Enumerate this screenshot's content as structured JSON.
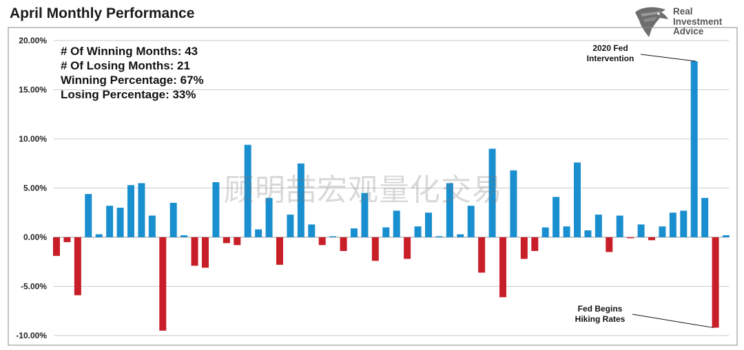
{
  "title": "April Monthly Performance",
  "logo": {
    "line1": "Real",
    "line2": "Investment",
    "line3": "Advice",
    "icon": "eagle-head-icon"
  },
  "stats": {
    "winning_months": "# Of Winning Months: 43",
    "losing_months": "# Of Losing Months: 21",
    "winning_pct": "Winning Percentage: 67%",
    "losing_pct": "Losing Percentage: 33%"
  },
  "watermark": "顾明喆宏观量化交易",
  "colors": {
    "positive": "#1a8fcf",
    "negative": "#c81e28",
    "grid": "#c8c8c8",
    "border": "#888888"
  },
  "chart_data": {
    "type": "bar",
    "title": "April Monthly Performance",
    "ylim": [
      -0.1,
      0.2
    ],
    "y_ticks": [
      -0.1,
      -0.05,
      0.0,
      0.05,
      0.1,
      0.15,
      0.2
    ],
    "y_tick_labels": [
      "-10.00%",
      "-5.00%",
      "0.00%",
      "5.00%",
      "10.00%",
      "15.00%",
      "20.00%"
    ],
    "grid": true,
    "values": [
      -0.019,
      -0.005,
      -0.059,
      0.044,
      0.003,
      0.032,
      0.03,
      0.053,
      0.055,
      0.022,
      -0.095,
      0.035,
      0.002,
      -0.029,
      -0.031,
      0.056,
      -0.006,
      -0.008,
      0.094,
      0.008,
      0.04,
      -0.028,
      0.023,
      0.075,
      0.013,
      -0.008,
      0.001,
      -0.014,
      0.009,
      0.045,
      -0.024,
      0.01,
      0.027,
      -0.022,
      0.011,
      0.025,
      0.001,
      0.055,
      0.003,
      0.032,
      -0.036,
      0.09,
      -0.061,
      0.068,
      -0.022,
      -0.014,
      0.01,
      0.041,
      0.011,
      0.076,
      0.007,
      0.023,
      -0.015,
      0.022,
      -0.001,
      0.013,
      -0.003,
      0.011,
      0.025,
      0.027,
      0.179,
      0.04,
      -0.092,
      0.002
    ],
    "annotations": [
      {
        "text_lines": [
          "2020 Fed",
          "Intervention"
        ],
        "bar_index": 60
      },
      {
        "text_lines": [
          "Fed Begins",
          "Hiking Rates"
        ],
        "bar_index": 62
      }
    ]
  }
}
